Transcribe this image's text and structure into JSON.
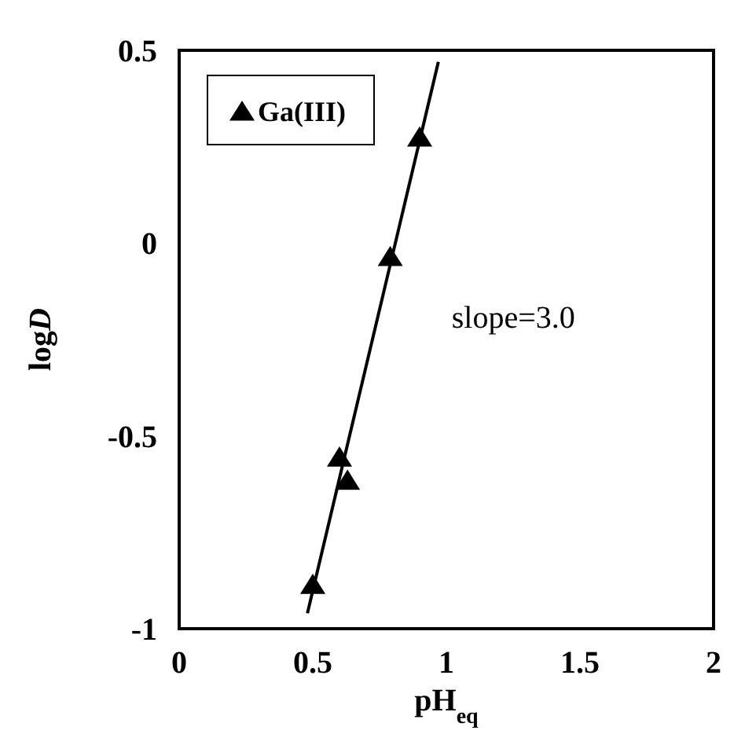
{
  "chart_data": {
    "type": "scatter",
    "xlabel": "pH$_{eq}$",
    "ylabel": "logD",
    "annotations": [
      "slope=3.0"
    ],
    "series": [
      {
        "name": "Ga(III)",
        "color": "#000000",
        "marker": "triangle",
        "x": [
          0.5,
          0.6,
          0.63,
          0.79,
          0.9
        ],
        "values": [
          -0.89,
          -0.56,
          -0.62,
          -0.04,
          0.27
        ]
      },
      {
        "type": "line",
        "color": "#000000",
        "x": [
          0.48,
          0.97
        ],
        "values": [
          -0.96,
          0.47
        ]
      }
    ],
    "xlim": [
      0,
      2
    ],
    "xticks": [
      0,
      0.5,
      1,
      1.5,
      2
    ],
    "ylim": [
      -1,
      0.5
    ],
    "yticks": [
      -1,
      -0.5,
      0,
      0.5
    ],
    "grid": false,
    "legend": "top left"
  }
}
